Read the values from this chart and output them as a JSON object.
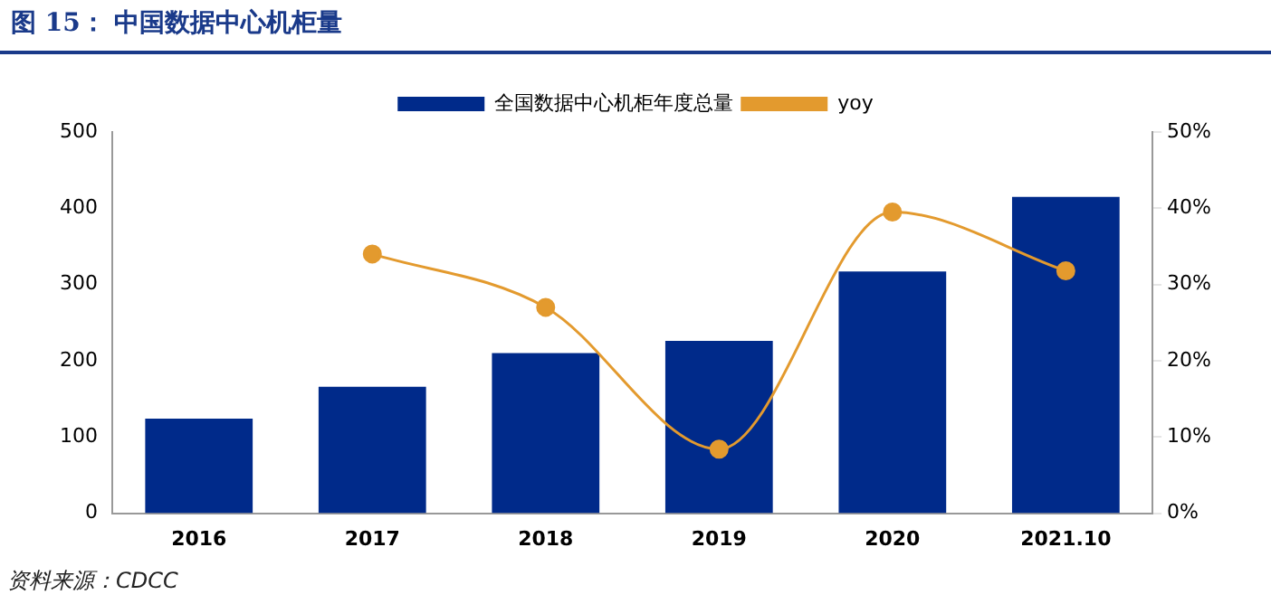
{
  "chart_data": {
    "type": "bar",
    "title": "图 15： 中国数据中心机柜量",
    "categories": [
      "2016",
      "2017",
      "2018",
      "2019",
      "2020",
      "2021.10"
    ],
    "series": [
      {
        "name": "全国数据中心机柜年度总量",
        "color": "#002a8a",
        "values": [
          124,
          166,
          210,
          226,
          317,
          415
        ]
      },
      {
        "name": "yoy",
        "type": "line",
        "axis": "y2",
        "color": "#e39a2e",
        "values": [
          null,
          34,
          27,
          8.4,
          39.5,
          31.8
        ],
        "marker": "circle"
      }
    ],
    "ylim": [
      0,
      500
    ],
    "yticks": [
      0,
      100,
      200,
      300,
      400,
      500
    ],
    "y2lim": [
      0,
      50
    ],
    "y2ticks": [
      {
        "value": 0,
        "label": "0%"
      },
      {
        "value": 10,
        "label": "10%"
      },
      {
        "value": 20,
        "label": "20%"
      },
      {
        "value": 30,
        "label": "30%"
      },
      {
        "value": 40,
        "label": "40%"
      },
      {
        "value": 50,
        "label": "50%"
      }
    ],
    "grid": false,
    "legend": "top",
    "annotations": [
      "资料来源：CDCC"
    ]
  }
}
